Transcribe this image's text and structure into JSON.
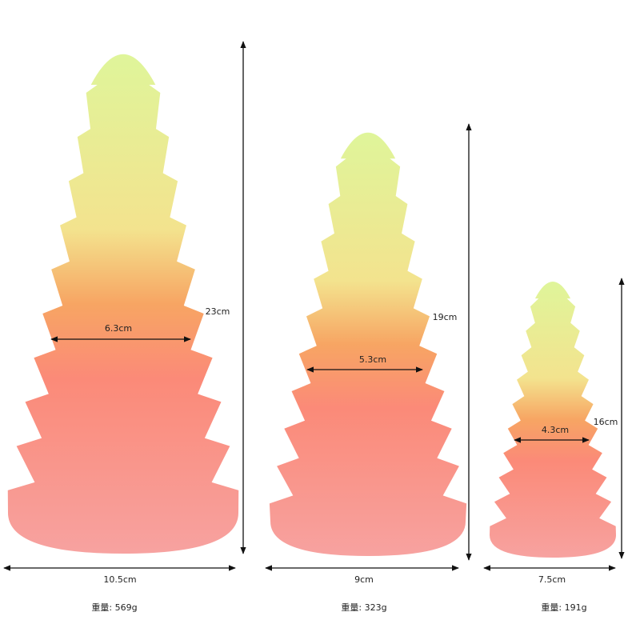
{
  "items": [
    {
      "height": "23cm",
      "width": "6.3cm",
      "base": "10.5cm",
      "weight": "重量: 569g"
    },
    {
      "height": "19cm",
      "width": "5.3cm",
      "base": "9cm",
      "weight": "重量: 323g"
    },
    {
      "height": "16cm",
      "width": "4.3cm",
      "base": "7.5cm",
      "weight": "重量: 191g"
    }
  ]
}
